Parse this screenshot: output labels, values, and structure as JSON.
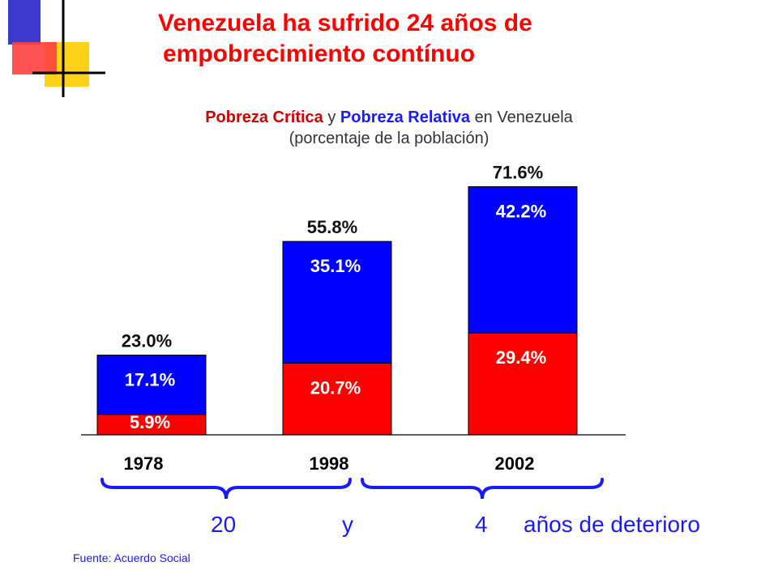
{
  "title": {
    "line1": "Venezuela ha sufrido 24 años de",
    "line2": "empobrecimiento contínuo"
  },
  "subtitle": {
    "critica": "Pobreza Crítica",
    "y": "y",
    "relativa": "Pobreza Relativa",
    "en": "en Venezuela",
    "line2": "(porcentaje de la población)"
  },
  "colors": {
    "critica": "#ff0000",
    "relativa": "#0000ff",
    "title": "#ff0000",
    "footer": "#1a1aff"
  },
  "chart_data": {
    "type": "bar",
    "stacked": true,
    "categories": [
      "1978",
      "1998",
      "2002"
    ],
    "series": [
      {
        "name": "Pobreza Crítica",
        "values": [
          5.9,
          20.7,
          29.4
        ],
        "labels": [
          "5.9%",
          "20.7%",
          "29.4%"
        ],
        "color": "#ff0000"
      },
      {
        "name": "Pobreza Relativa",
        "values": [
          17.1,
          35.1,
          42.2
        ],
        "labels": [
          "17.1%",
          "35.1%",
          "42.2%"
        ],
        "color": "#0000ff"
      }
    ],
    "totals": [
      23.0,
      55.8,
      71.6
    ],
    "total_labels": [
      "23.0%",
      "55.8%",
      "71.6%"
    ],
    "ylim": [
      0,
      100
    ],
    "grid": false
  },
  "footer": {
    "n20": "20",
    "y": "y",
    "n4": "4",
    "text": "años de deterioro"
  },
  "source": "Fuente: Acuerdo Social"
}
